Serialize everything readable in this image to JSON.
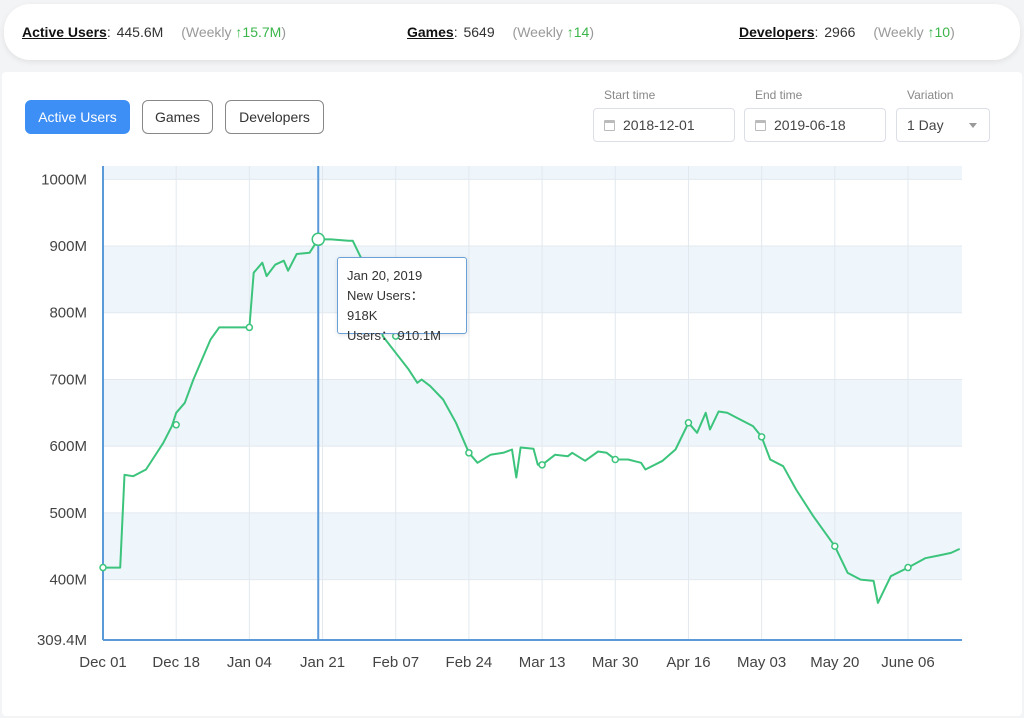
{
  "stats": {
    "active_users": {
      "label": "Active Users",
      "value": "445.6M",
      "weekly": "(Weekly",
      "change": "15.7M",
      "close": ")"
    },
    "games": {
      "label": "Games",
      "value": "5649",
      "weekly": "(Weekly",
      "change": "14",
      "close": ")"
    },
    "developers": {
      "label": "Developers",
      "value": "2966",
      "weekly": "(Weekly",
      "change": "10",
      "close": ")"
    },
    "separator": ":",
    "arrow_icon": "up-arrow-icon"
  },
  "tabs": [
    "Active Users",
    "Games",
    "Developers"
  ],
  "filters": {
    "start_label": "Start time",
    "start_value": "2018-12-01",
    "end_label": "End time",
    "end_value": "2019-06-18",
    "variation_label": "Variation",
    "variation_value": "1 Day"
  },
  "tooltip": {
    "date": "Jan 20, 2019",
    "new_users": "New Users： 918K",
    "users": "Users： 910.1M"
  },
  "colors": {
    "accent": "#3d8ef5",
    "line": "#3cc47c",
    "up": "#3bb54a",
    "band": "#eef6fc",
    "axis": "#5b9ad8"
  },
  "chart_data": {
    "type": "line",
    "title": "",
    "xlabel": "",
    "ylabel": "",
    "ylim": [
      309.4,
      1020
    ],
    "grid": true,
    "y_ticks": [
      "309.4M",
      "400M",
      "500M",
      "600M",
      "700M",
      "800M",
      "900M",
      "1000M"
    ],
    "x_ticks": [
      "Dec 01",
      "Dec 18",
      "Jan 04",
      "Jan 21",
      "Feb 07",
      "Feb 24",
      "Mar 13",
      "Mar 30",
      "Apr 16",
      "May 03",
      "May 20",
      "June 06"
    ],
    "highlight": {
      "date": "2019-01-20",
      "value": 910.1
    },
    "series": [
      {
        "x": [
          "2018-12-01",
          "2018-12-05",
          "2018-12-06",
          "2018-12-08",
          "2018-12-11",
          "2018-12-14",
          "2018-12-15",
          "2018-12-17",
          "2018-12-18",
          "2018-12-20",
          "2018-12-22",
          "2018-12-24",
          "2018-12-26",
          "2018-12-28",
          "2018-12-29",
          "2019-01-01",
          "2019-01-04",
          "2019-01-05",
          "2019-01-07",
          "2019-01-08",
          "2019-01-10",
          "2019-01-12",
          "2019-01-13",
          "2019-01-15",
          "2019-01-18",
          "2019-01-20",
          "2019-01-23",
          "2019-01-27",
          "2019-01-28",
          "2019-02-01",
          "2019-02-04",
          "2019-02-07",
          "2019-02-10",
          "2019-02-12",
          "2019-02-13",
          "2019-02-15",
          "2019-02-18",
          "2019-02-21",
          "2019-02-24",
          "2019-02-26",
          "2019-03-01",
          "2019-03-04",
          "2019-03-06",
          "2019-03-07",
          "2019-03-08",
          "2019-03-11",
          "2019-03-12",
          "2019-03-13",
          "2019-03-16",
          "2019-03-19",
          "2019-03-20",
          "2019-03-23",
          "2019-03-26",
          "2019-03-28",
          "2019-03-30",
          "2019-04-02",
          "2019-04-05",
          "2019-04-06",
          "2019-04-10",
          "2019-04-13",
          "2019-04-16",
          "2019-04-18",
          "2019-04-20",
          "2019-04-21",
          "2019-04-23",
          "2019-04-25",
          "2019-04-28",
          "2019-05-01",
          "2019-05-03",
          "2019-05-05",
          "2019-05-08",
          "2019-05-11",
          "2019-05-15",
          "2019-05-20",
          "2019-05-23",
          "2019-05-26",
          "2019-05-29",
          "2019-05-30",
          "2019-06-02",
          "2019-06-06",
          "2019-06-10",
          "2019-06-13",
          "2019-06-16",
          "2019-06-18"
        ],
        "values": [
          418,
          418,
          557,
          555,
          565,
          595,
          605,
          630,
          650,
          665,
          700,
          730,
          760,
          778,
          778,
          778,
          778,
          860,
          875,
          855,
          872,
          878,
          863,
          888,
          890,
          910.1,
          910,
          908,
          908,
          855,
          765,
          740,
          715,
          695,
          700,
          690,
          670,
          635,
          590,
          575,
          587,
          590,
          595,
          553,
          598,
          596,
          572,
          572,
          587,
          585,
          590,
          578,
          592,
          590,
          580,
          580,
          575,
          565,
          578,
          595,
          635,
          620,
          650,
          625,
          652,
          650,
          640,
          630,
          614,
          580,
          570,
          535,
          495,
          450,
          410,
          400,
          398,
          365,
          405,
          418,
          432,
          436,
          440,
          446
        ]
      }
    ]
  }
}
